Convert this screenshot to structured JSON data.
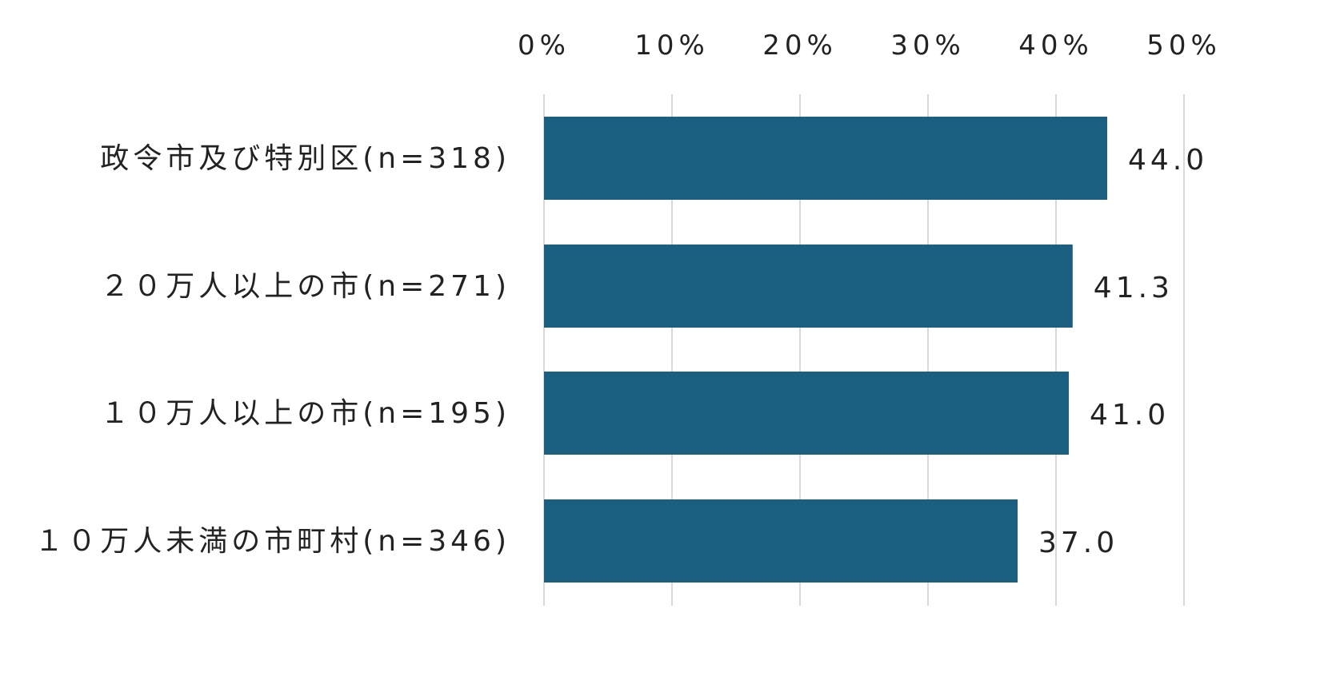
{
  "chart_data": {
    "type": "bar",
    "orientation": "horizontal",
    "categories": [
      "政令市及び特別区(n=318)",
      "２０万人以上の市(n=271)",
      "１０万人以上の市(n=195)",
      "１０万人未満の市町村(n=346)"
    ],
    "values": [
      44.0,
      41.3,
      41.0,
      37.0
    ],
    "value_labels": [
      "44.0",
      "41.3",
      "41.0",
      "37.0"
    ],
    "x_ticks": [
      "0%",
      "10%",
      "20%",
      "30%",
      "40%",
      "50%"
    ],
    "xlim": [
      0,
      50
    ],
    "x_axis_position": "top",
    "grid": true,
    "legend": "none",
    "title": "",
    "xlabel": "",
    "ylabel": "",
    "bar_color": "#1a5f80",
    "grid_color": "#d9d9d9"
  }
}
